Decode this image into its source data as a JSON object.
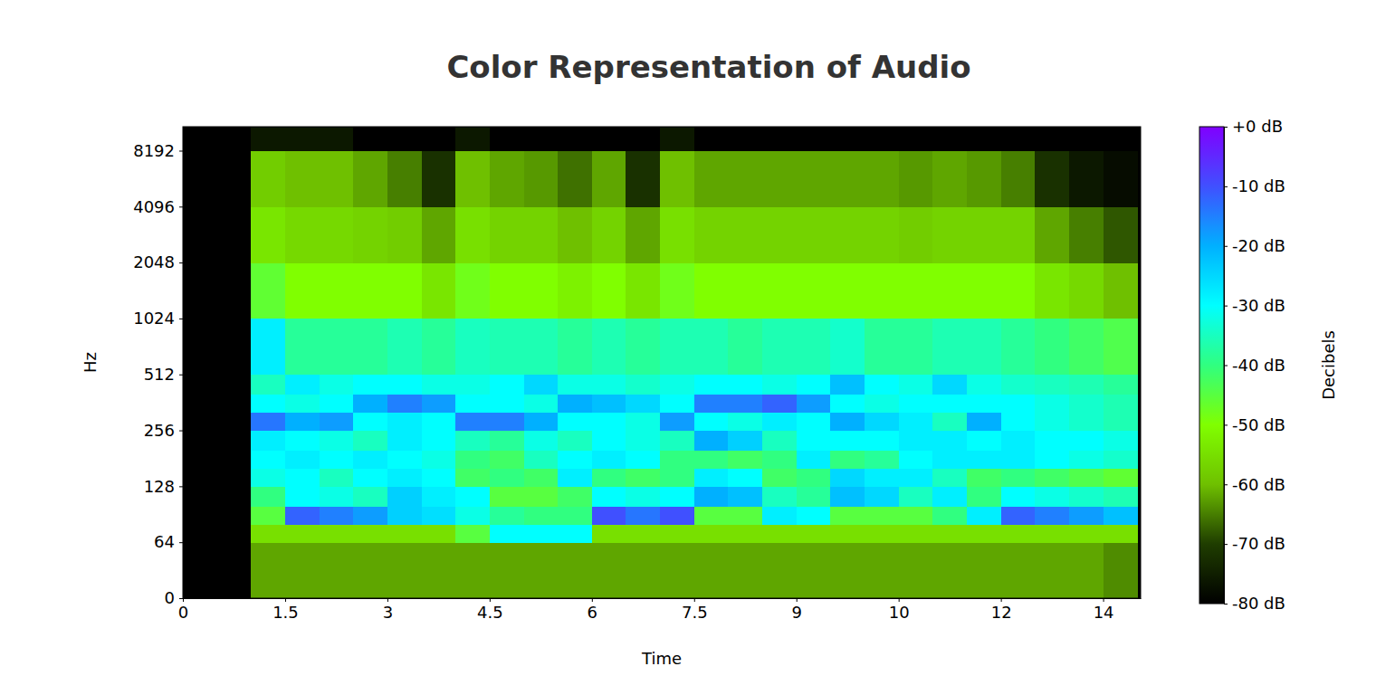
{
  "chart_data": {
    "type": "heatmap",
    "title": "Color Representation of Audio",
    "x_label": "Time",
    "y_label": "Hz",
    "log": "y",
    "xlim": [
      0,
      14.05
    ],
    "ylim": [
      0,
      11025
    ],
    "xticks": [
      0,
      1.5,
      3,
      4.5,
      6,
      7.5,
      9,
      {
        "value": 10.5,
        "label": "10"
      },
      12,
      {
        "value": 13.5,
        "label": "14"
      }
    ],
    "yticks": [
      0,
      64,
      128,
      256,
      512,
      1024,
      2048,
      4096,
      8192
    ],
    "x_bins": [
      0,
      0.5,
      1,
      1.5,
      2,
      2.5,
      3,
      3.5,
      4,
      4.5,
      5,
      5.5,
      6,
      6.5,
      7,
      7.5,
      8,
      8.5,
      9,
      9.5,
      10,
      10.5,
      11,
      11.5,
      12,
      12.5,
      13,
      13.5,
      14
    ],
    "y_bins": [
      0,
      64,
      80,
      100,
      128,
      160,
      200,
      256,
      320,
      400,
      512,
      1024,
      2048,
      4096,
      8192,
      11025
    ],
    "cells": [
      [
        -80,
        -80,
        -62,
        -62,
        -62,
        -62,
        -62,
        -62,
        -62,
        -62,
        -62,
        -62,
        -62,
        -62,
        -62,
        -62,
        -62,
        -62,
        -62,
        -62,
        -62,
        -62,
        -62,
        -62,
        -62,
        -62,
        -62,
        -64
      ],
      [
        -80,
        -80,
        -55,
        -55,
        -55,
        -55,
        -55,
        -55,
        -45,
        -30,
        -30,
        -30,
        -55,
        -55,
        -55,
        -55,
        -55,
        -55,
        -55,
        -55,
        -55,
        -55,
        -55,
        -55,
        -55,
        -55,
        -55,
        -55
      ],
      [
        -80,
        -80,
        -45,
        -12,
        -15,
        -18,
        -24,
        -26,
        -32,
        -38,
        -40,
        -40,
        -10,
        -14,
        -10,
        -45,
        -45,
        -28,
        -30,
        -45,
        -45,
        -45,
        -40,
        -28,
        -12,
        -15,
        -18,
        -22
      ],
      [
        -80,
        -80,
        -40,
        -30,
        -32,
        -35,
        -24,
        -28,
        -30,
        -45,
        -45,
        -42,
        -30,
        -32,
        -30,
        -20,
        -22,
        -35,
        -38,
        -22,
        -25,
        -35,
        -28,
        -40,
        -30,
        -32,
        -34,
        -36
      ],
      [
        -80,
        -80,
        -32,
        -30,
        -35,
        -30,
        -28,
        -30,
        -42,
        -40,
        -42,
        -28,
        -40,
        -42,
        -40,
        -28,
        -30,
        -42,
        -40,
        -25,
        -28,
        -28,
        -35,
        -42,
        -40,
        -42,
        -44,
        -46
      ],
      [
        -80,
        -80,
        -30,
        -28,
        -30,
        -28,
        -30,
        -32,
        -40,
        -42,
        -35,
        -30,
        -28,
        -30,
        -40,
        -40,
        -42,
        -40,
        -28,
        -40,
        -38,
        -30,
        -28,
        -28,
        -28,
        -30,
        -32,
        -34
      ],
      [
        -80,
        -80,
        -28,
        -30,
        -32,
        -35,
        -28,
        -30,
        -35,
        -38,
        -32,
        -35,
        -30,
        -32,
        -35,
        -20,
        -24,
        -35,
        -30,
        -30,
        -30,
        -28,
        -28,
        -30,
        -28,
        -30,
        -30,
        -32
      ],
      [
        -80,
        -80,
        -14,
        -20,
        -18,
        -30,
        -28,
        -30,
        -15,
        -15,
        -20,
        -30,
        -30,
        -32,
        -18,
        -30,
        -32,
        -28,
        -30,
        -20,
        -25,
        -28,
        -35,
        -20,
        -30,
        -32,
        -34,
        -36
      ],
      [
        -80,
        -80,
        -30,
        -32,
        -30,
        -20,
        -15,
        -18,
        -30,
        -30,
        -32,
        -20,
        -22,
        -25,
        -30,
        -15,
        -15,
        -12,
        -18,
        -30,
        -32,
        -30,
        -30,
        -30,
        -30,
        -32,
        -34,
        -36
      ],
      [
        -80,
        -80,
        -35,
        -28,
        -32,
        -30,
        -30,
        -32,
        -32,
        -30,
        -25,
        -32,
        -32,
        -34,
        -32,
        -30,
        -30,
        -32,
        -30,
        -22,
        -30,
        -32,
        -25,
        -32,
        -34,
        -35,
        -36,
        -38
      ],
      [
        -80,
        -80,
        -28,
        -38,
        -38,
        -38,
        -36,
        -38,
        -35,
        -36,
        -36,
        -38,
        -36,
        -38,
        -36,
        -36,
        -38,
        -36,
        -36,
        -34,
        -38,
        -38,
        -36,
        -36,
        -38,
        -40,
        -42,
        -44
      ],
      [
        -80,
        -80,
        -46,
        -50,
        -50,
        -50,
        -50,
        -54,
        -48,
        -50,
        -50,
        -52,
        -50,
        -54,
        -48,
        -50,
        -50,
        -50,
        -50,
        -50,
        -50,
        -50,
        -50,
        -50,
        -50,
        -54,
        -56,
        -60
      ],
      [
        -80,
        -80,
        -54,
        -56,
        -56,
        -57,
        -58,
        -62,
        -55,
        -57,
        -57,
        -60,
        -57,
        -62,
        -55,
        -57,
        -57,
        -57,
        -57,
        -57,
        -57,
        -58,
        -57,
        -57,
        -57,
        -62,
        -65,
        -68
      ],
      [
        -80,
        -80,
        -58,
        -60,
        -60,
        -62,
        -65,
        -72,
        -60,
        -62,
        -63,
        -66,
        -62,
        -72,
        -60,
        -62,
        -62,
        -62,
        -62,
        -62,
        -62,
        -63,
        -62,
        -63,
        -65,
        -72,
        -76,
        -78
      ],
      [
        -80,
        -80,
        -76,
        -76,
        -76,
        -80,
        -80,
        -80,
        -76,
        -80,
        -80,
        -80,
        -80,
        -80,
        -76,
        -80,
        -80,
        -80,
        -80,
        -80,
        -80,
        -80,
        -80,
        -80,
        -80,
        -80,
        -80,
        -80
      ]
    ],
    "colorbar": {
      "label": "Decibels",
      "range": [
        -80,
        0
      ],
      "ticks": [
        {
          "value": 0,
          "label": "+0 dB"
        },
        {
          "value": -10,
          "label": "-10 dB"
        },
        {
          "value": -20,
          "label": "-20 dB"
        },
        {
          "value": -30,
          "label": "-30 dB"
        },
        {
          "value": -40,
          "label": "-40 dB"
        },
        {
          "value": -50,
          "label": "-50 dB"
        },
        {
          "value": -60,
          "label": "-60 dB"
        },
        {
          "value": -70,
          "label": "-70 dB"
        },
        {
          "value": -80,
          "label": "-80 dB"
        }
      ]
    }
  }
}
